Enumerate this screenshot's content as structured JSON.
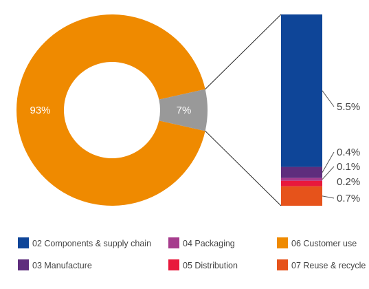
{
  "chart_data": {
    "type": "pie",
    "variant": "donut-with-breakdown-bar",
    "donut": {
      "slices": [
        {
          "label": "93%",
          "value": 93,
          "color": "#ef8a00",
          "name": "06 Customer use"
        },
        {
          "label": "7%",
          "value": 7,
          "color": "#999999"
        }
      ]
    },
    "breakdown": {
      "segments": [
        {
          "label": "5.5%",
          "value": 5.5,
          "color": "#0e4598",
          "name": "02 Components & supply chain"
        },
        {
          "label": "0.4%",
          "value": 0.4,
          "color": "#5e2d7d",
          "name": "03 Manufacture"
        },
        {
          "label": "0.1%",
          "value": 0.1,
          "color": "#a63c8d",
          "name": "04 Packaging"
        },
        {
          "label": "0.2%",
          "value": 0.2,
          "color": "#e8193c",
          "name": "05 Distribution"
        },
        {
          "label": "0.7%",
          "value": 0.7,
          "color": "#e6531b",
          "name": "07 Reuse & recycle"
        }
      ]
    },
    "legend": {
      "placement": "bottom",
      "items": [
        {
          "label": "02 Components & supply chain",
          "color": "#0e4598"
        },
        {
          "label": "04 Packaging",
          "color": "#a63c8d"
        },
        {
          "label": "06 Customer use",
          "color": "#ef8a00"
        },
        {
          "label": "03 Manufacture",
          "color": "#5e2d7d"
        },
        {
          "label": "05 Distribution",
          "color": "#e8193c"
        },
        {
          "label": "07 Reuse & recycle",
          "color": "#e6531b"
        }
      ]
    }
  }
}
